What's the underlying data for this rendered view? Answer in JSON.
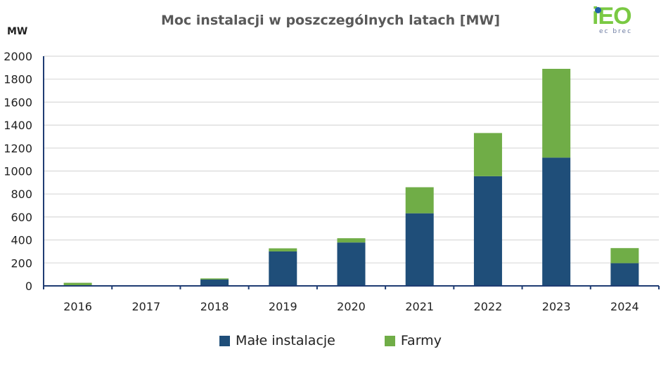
{
  "chart_data": {
    "type": "bar",
    "stacked": true,
    "title": "Moc instalacji w poszczególnych latach [MW]",
    "ylabel": "MW",
    "xlabel": "",
    "ylim": [
      0,
      2000
    ],
    "yticks": [
      0,
      200,
      400,
      600,
      800,
      1000,
      1200,
      1400,
      1600,
      1800,
      2000
    ],
    "grid": true,
    "legend_position": "bottom",
    "categories": [
      "2016",
      "2017",
      "2018",
      "2019",
      "2020",
      "2021",
      "2022",
      "2023",
      "2024"
    ],
    "series": [
      {
        "name": "Małe instalacje",
        "color": "#1f4e79",
        "values": [
          5,
          0,
          55,
          300,
          378,
          632,
          955,
          1117,
          198
        ]
      },
      {
        "name": "Farmy",
        "color": "#70ad47",
        "values": [
          22,
          0,
          10,
          27,
          37,
          227,
          376,
          773,
          131
        ]
      }
    ]
  },
  "logo": {
    "text": "iEO",
    "subtext": "ec brec"
  }
}
